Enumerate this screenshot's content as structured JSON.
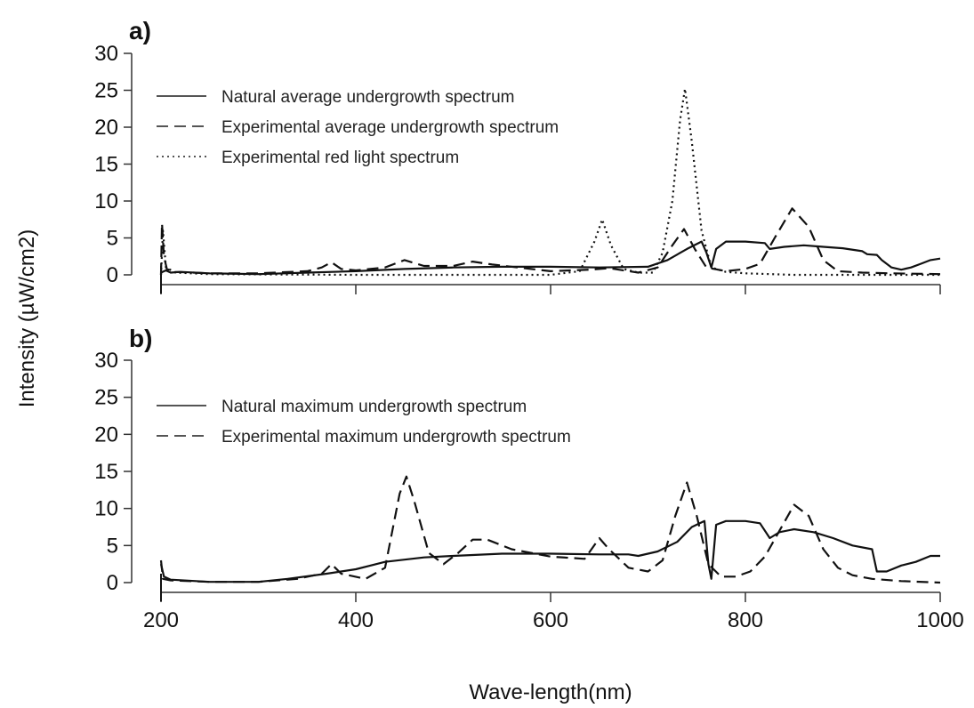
{
  "figure": {
    "ylabel": "Intensity (µW/cm2)",
    "xlabel": "Wave-length(nm)"
  },
  "chart_data": [
    {
      "type": "line",
      "panel": "a)",
      "xlim": [
        200,
        1000
      ],
      "ylim": [
        0,
        30
      ],
      "x_ticks": [
        200,
        400,
        600,
        800,
        1000
      ],
      "y_ticks": [
        0,
        5,
        10,
        15,
        20,
        25,
        30
      ],
      "x_tick_labels_shown": false,
      "legend_position": "top-left",
      "grid": false,
      "series": [
        {
          "name": "Natural average undergrowth spectrum",
          "style": "solid",
          "points": [
            [
              200,
              0.3
            ],
            [
              205,
              0.6
            ],
            [
              210,
              0.3
            ],
            [
              220,
              0.4
            ],
            [
              250,
              0.2
            ],
            [
              300,
              0.1
            ],
            [
              350,
              0.3
            ],
            [
              400,
              0.5
            ],
            [
              450,
              0.8
            ],
            [
              500,
              1.0
            ],
            [
              550,
              1.1
            ],
            [
              600,
              1.1
            ],
            [
              650,
              1.0
            ],
            [
              700,
              1.1
            ],
            [
              720,
              2.0
            ],
            [
              740,
              3.5
            ],
            [
              755,
              4.5
            ],
            [
              760,
              3.0
            ],
            [
              765,
              1.0
            ],
            [
              770,
              3.5
            ],
            [
              780,
              4.5
            ],
            [
              800,
              4.5
            ],
            [
              820,
              4.3
            ],
            [
              825,
              3.5
            ],
            [
              840,
              3.8
            ],
            [
              860,
              4.0
            ],
            [
              880,
              3.8
            ],
            [
              900,
              3.6
            ],
            [
              920,
              3.2
            ],
            [
              925,
              2.8
            ],
            [
              935,
              2.7
            ],
            [
              940,
              2.0
            ],
            [
              950,
              1.0
            ],
            [
              960,
              0.7
            ],
            [
              970,
              1.0
            ],
            [
              980,
              1.5
            ],
            [
              990,
              2.0
            ],
            [
              1000,
              2.2
            ]
          ]
        },
        {
          "name": "Experimental average undergrowth spectrum",
          "style": "dashed",
          "points": [
            [
              200,
              0.0
            ],
            [
              201,
              7.0
            ],
            [
              203,
              2.5
            ],
            [
              206,
              0.8
            ],
            [
              215,
              0.4
            ],
            [
              250,
              0.2
            ],
            [
              300,
              0.2
            ],
            [
              350,
              0.5
            ],
            [
              365,
              1.0
            ],
            [
              375,
              1.7
            ],
            [
              385,
              0.8
            ],
            [
              400,
              0.6
            ],
            [
              430,
              1.0
            ],
            [
              450,
              2.0
            ],
            [
              470,
              1.2
            ],
            [
              500,
              1.2
            ],
            [
              520,
              1.8
            ],
            [
              540,
              1.4
            ],
            [
              580,
              0.8
            ],
            [
              600,
              0.5
            ],
            [
              640,
              0.7
            ],
            [
              660,
              0.9
            ],
            [
              690,
              0.3
            ],
            [
              710,
              1.0
            ],
            [
              725,
              4.0
            ],
            [
              737,
              6.2
            ],
            [
              748,
              3.5
            ],
            [
              760,
              1.0
            ],
            [
              780,
              0.5
            ],
            [
              800,
              0.8
            ],
            [
              815,
              1.5
            ],
            [
              830,
              5.0
            ],
            [
              848,
              9.0
            ],
            [
              865,
              6.5
            ],
            [
              880,
              2.0
            ],
            [
              895,
              0.5
            ],
            [
              920,
              0.3
            ],
            [
              950,
              0.2
            ],
            [
              1000,
              0.1
            ]
          ]
        },
        {
          "name": "Experimental red light spectrum",
          "style": "dotted",
          "points": [
            [
              200,
              0.0
            ],
            [
              202,
              6.0
            ],
            [
              205,
              1.0
            ],
            [
              215,
              0.3
            ],
            [
              250,
              0.1
            ],
            [
              400,
              0.0
            ],
            [
              600,
              0.0
            ],
            [
              630,
              0.5
            ],
            [
              645,
              4.5
            ],
            [
              653,
              7.5
            ],
            [
              662,
              4.0
            ],
            [
              675,
              0.8
            ],
            [
              690,
              0.3
            ],
            [
              705,
              0.3
            ],
            [
              715,
              3.0
            ],
            [
              725,
              10.0
            ],
            [
              733,
              21.0
            ],
            [
              738,
              25.2
            ],
            [
              745,
              18.0
            ],
            [
              755,
              6.0
            ],
            [
              765,
              1.0
            ],
            [
              780,
              0.4
            ],
            [
              800,
              0.2
            ],
            [
              850,
              0.0
            ],
            [
              900,
              0.0
            ],
            [
              950,
              0.0
            ],
            [
              1000,
              0.0
            ]
          ]
        }
      ]
    },
    {
      "type": "line",
      "panel": "b)",
      "xlim": [
        200,
        1000
      ],
      "ylim": [
        0,
        30
      ],
      "x_ticks": [
        200,
        400,
        600,
        800,
        1000
      ],
      "y_ticks": [
        0,
        5,
        10,
        15,
        20,
        25,
        30
      ],
      "x_tick_labels_shown": true,
      "legend_position": "top-left",
      "grid": false,
      "series": [
        {
          "name": "Natural maximum undergrowth spectrum",
          "style": "solid",
          "points": [
            [
              200,
              2.5
            ],
            [
              203,
              0.8
            ],
            [
              210,
              0.4
            ],
            [
              250,
              0.1
            ],
            [
              300,
              0.1
            ],
            [
              330,
              0.5
            ],
            [
              370,
              1.2
            ],
            [
              400,
              1.8
            ],
            [
              430,
              2.8
            ],
            [
              470,
              3.4
            ],
            [
              500,
              3.6
            ],
            [
              550,
              3.9
            ],
            [
              600,
              3.9
            ],
            [
              650,
              3.8
            ],
            [
              680,
              3.8
            ],
            [
              690,
              3.6
            ],
            [
              710,
              4.2
            ],
            [
              730,
              5.5
            ],
            [
              745,
              7.5
            ],
            [
              758,
              8.3
            ],
            [
              762,
              2.5
            ],
            [
              765,
              0.5
            ],
            [
              770,
              7.8
            ],
            [
              780,
              8.3
            ],
            [
              800,
              8.3
            ],
            [
              815,
              8.0
            ],
            [
              825,
              6.0
            ],
            [
              835,
              6.8
            ],
            [
              850,
              7.2
            ],
            [
              870,
              6.8
            ],
            [
              890,
              6.0
            ],
            [
              910,
              5.0
            ],
            [
              930,
              4.5
            ],
            [
              935,
              1.5
            ],
            [
              945,
              1.5
            ],
            [
              960,
              2.3
            ],
            [
              975,
              2.8
            ],
            [
              990,
              3.6
            ],
            [
              1000,
              3.6
            ]
          ]
        },
        {
          "name": "Experimental maximum undergrowth spectrum",
          "style": "dashed",
          "points": [
            [
              200,
              3.0
            ],
            [
              202,
              0.5
            ],
            [
              210,
              0.3
            ],
            [
              250,
              0.1
            ],
            [
              300,
              0.1
            ],
            [
              340,
              0.5
            ],
            [
              365,
              1.2
            ],
            [
              375,
              2.5
            ],
            [
              385,
              1.2
            ],
            [
              410,
              0.5
            ],
            [
              430,
              2.0
            ],
            [
              445,
              12.0
            ],
            [
              452,
              14.3
            ],
            [
              460,
              11.0
            ],
            [
              475,
              4.0
            ],
            [
              490,
              2.5
            ],
            [
              505,
              4.0
            ],
            [
              520,
              5.8
            ],
            [
              535,
              5.8
            ],
            [
              560,
              4.5
            ],
            [
              600,
              3.5
            ],
            [
              635,
              3.2
            ],
            [
              650,
              6.0
            ],
            [
              660,
              4.5
            ],
            [
              680,
              2.0
            ],
            [
              700,
              1.5
            ],
            [
              715,
              3.0
            ],
            [
              728,
              9.0
            ],
            [
              740,
              13.5
            ],
            [
              750,
              9.0
            ],
            [
              762,
              2.5
            ],
            [
              775,
              0.8
            ],
            [
              790,
              0.8
            ],
            [
              805,
              1.5
            ],
            [
              820,
              3.5
            ],
            [
              835,
              7.0
            ],
            [
              850,
              10.5
            ],
            [
              865,
              9.0
            ],
            [
              880,
              4.5
            ],
            [
              895,
              2.0
            ],
            [
              910,
              1.0
            ],
            [
              930,
              0.5
            ],
            [
              960,
              0.2
            ],
            [
              1000,
              0.0
            ]
          ]
        }
      ]
    }
  ]
}
